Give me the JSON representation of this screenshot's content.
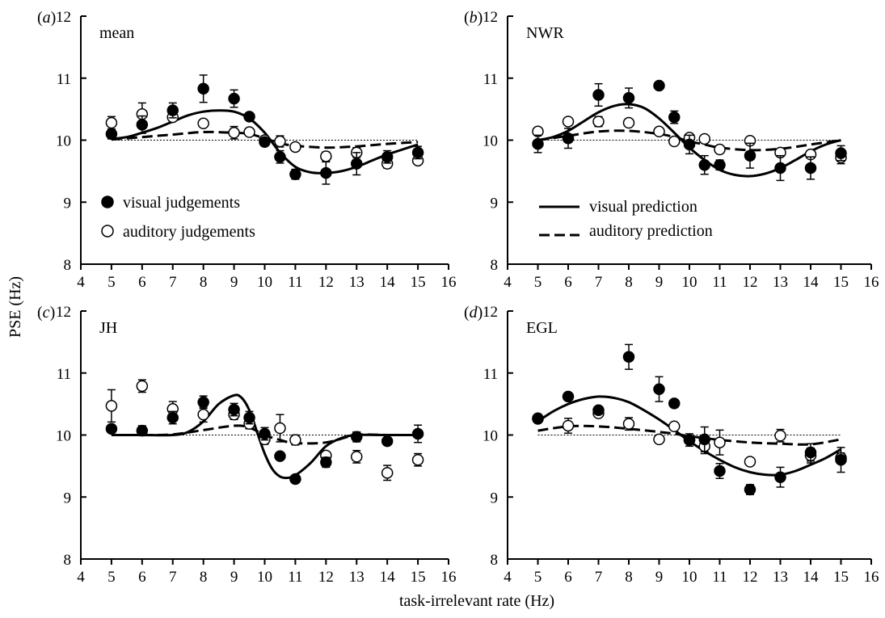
{
  "figure": {
    "ylabel": "PSE (Hz)",
    "xlabel": "task-irrelevant rate (Hz)"
  },
  "legends": {
    "markers": [
      {
        "label": "visual judgements",
        "marker": "filled-circle"
      },
      {
        "label": "auditory judgements",
        "marker": "open-circle"
      }
    ],
    "lines": [
      {
        "label": "visual prediction",
        "style": "solid"
      },
      {
        "label": "auditory prediction",
        "style": "dashed"
      }
    ]
  },
  "colors": {
    "ink": "#000000",
    "background": "#ffffff"
  },
  "chart_data": [
    {
      "type": "scatter",
      "panel": "(a)",
      "title": "mean",
      "xlim": [
        4,
        16
      ],
      "ylim": [
        8,
        12
      ],
      "xticks": [
        4,
        5,
        6,
        7,
        8,
        9,
        10,
        11,
        12,
        13,
        14,
        15,
        16
      ],
      "yticks": [
        8,
        9,
        10,
        11,
        12
      ],
      "series": [
        {
          "name": "visual judgements",
          "marker": "filled",
          "x": [
            5,
            6,
            7,
            8,
            9,
            9.5,
            10,
            10.5,
            11,
            12,
            13,
            14,
            15
          ],
          "y": [
            10.1,
            10.25,
            10.48,
            10.83,
            10.67,
            10.38,
            9.97,
            9.73,
            9.45,
            9.47,
            9.62,
            9.73,
            9.8
          ],
          "err": [
            0.08,
            0.14,
            0.12,
            0.22,
            0.14,
            0.06,
            0.05,
            0.1,
            0.08,
            0.18,
            0.18,
            0.1,
            0.1
          ]
        },
        {
          "name": "auditory judgements",
          "marker": "open",
          "x": [
            5,
            6,
            7,
            8,
            9,
            9.5,
            10,
            10.5,
            11,
            12,
            13,
            14,
            15
          ],
          "y": [
            10.28,
            10.42,
            10.37,
            10.27,
            10.12,
            10.13,
            10.0,
            9.98,
            9.89,
            9.74,
            9.8,
            9.62,
            9.67
          ],
          "err": [
            0.1,
            0.18,
            0.05,
            0.04,
            0.1,
            0.05,
            0.05,
            0.09,
            0.04,
            0.07,
            0.08,
            0.07,
            0.05
          ]
        },
        {
          "name": "visual prediction",
          "line": "solid",
          "x": [
            5,
            5.5,
            6,
            6.5,
            7,
            7.5,
            8,
            8.5,
            9,
            9.5,
            10,
            10.5,
            11,
            11.5,
            12,
            12.5,
            13,
            13.5,
            14,
            14.5,
            15
          ],
          "y": [
            10.02,
            10.05,
            10.12,
            10.2,
            10.3,
            10.4,
            10.46,
            10.48,
            10.46,
            10.35,
            10.12,
            9.8,
            9.57,
            9.48,
            9.47,
            9.5,
            9.57,
            9.67,
            9.77,
            9.85,
            9.93
          ]
        },
        {
          "name": "auditory prediction",
          "line": "dashed",
          "x": [
            5,
            6,
            7,
            8,
            9,
            9.5,
            10,
            10.5,
            11,
            12,
            13,
            14,
            15
          ],
          "y": [
            10.01,
            10.05,
            10.09,
            10.13,
            10.12,
            10.1,
            10.03,
            9.95,
            9.91,
            9.88,
            9.9,
            9.94,
            9.97
          ]
        },
        {
          "name": "",
          "line": "dotted",
          "x": [
            5,
            15
          ],
          "y": [
            10,
            10
          ]
        }
      ]
    },
    {
      "type": "scatter",
      "panel": "(b)",
      "title": "NWR",
      "xlim": [
        4,
        16
      ],
      "ylim": [
        8,
        12
      ],
      "xticks": [
        4,
        5,
        6,
        7,
        8,
        9,
        10,
        11,
        12,
        13,
        14,
        15,
        16
      ],
      "yticks": [
        8,
        9,
        10,
        11,
        12
      ],
      "series": [
        {
          "name": "visual judgements",
          "marker": "filled",
          "x": [
            5,
            6,
            7,
            8,
            9,
            9.5,
            10,
            10.5,
            11,
            12,
            13,
            14,
            15
          ],
          "y": [
            9.94,
            10.03,
            10.73,
            10.68,
            10.88,
            10.37,
            9.93,
            9.6,
            9.6,
            9.75,
            9.55,
            9.55,
            9.79
          ],
          "err": [
            0.14,
            0.16,
            0.18,
            0.16,
            0.06,
            0.1,
            0.15,
            0.15,
            0.08,
            0.2,
            0.2,
            0.18,
            0.12
          ]
        },
        {
          "name": "auditory judgements",
          "marker": "open",
          "x": [
            5,
            6,
            7,
            8,
            9,
            9.5,
            10,
            10.5,
            11,
            12,
            13,
            14,
            15
          ],
          "y": [
            10.14,
            10.3,
            10.3,
            10.28,
            10.14,
            9.98,
            10.04,
            10.02,
            9.85,
            9.99,
            9.8,
            9.77,
            9.72
          ],
          "err": [
            0.04,
            0.04,
            0.08,
            0.04,
            0.04,
            0.04,
            0.04,
            0.04,
            0.04,
            0.04,
            0.06,
            0.04,
            0.1
          ]
        },
        {
          "name": "visual prediction",
          "line": "solid",
          "x": [
            5,
            5.5,
            6,
            6.5,
            7,
            7.5,
            8,
            8.5,
            9,
            9.5,
            10,
            10.5,
            11,
            11.5,
            12,
            12.5,
            13,
            13.5,
            14,
            14.5,
            15
          ],
          "y": [
            10.0,
            10.05,
            10.15,
            10.3,
            10.45,
            10.55,
            10.58,
            10.52,
            10.35,
            10.12,
            9.88,
            9.68,
            9.52,
            9.44,
            9.42,
            9.46,
            9.55,
            9.68,
            9.82,
            9.93,
            10.0
          ]
        },
        {
          "name": "auditory prediction",
          "line": "dashed",
          "x": [
            5,
            6,
            7,
            8,
            9,
            9.5,
            10,
            10.5,
            11,
            12,
            13,
            14,
            15
          ],
          "y": [
            10.0,
            10.07,
            10.14,
            10.15,
            10.1,
            10.05,
            9.98,
            9.93,
            9.88,
            9.84,
            9.86,
            9.93,
            10.0
          ]
        },
        {
          "name": "",
          "line": "dotted",
          "x": [
            5,
            15
          ],
          "y": [
            10,
            10
          ]
        }
      ]
    },
    {
      "type": "scatter",
      "panel": "(c)",
      "title": "JH",
      "xlim": [
        4,
        16
      ],
      "ylim": [
        8,
        12
      ],
      "xticks": [
        4,
        5,
        6,
        7,
        8,
        9,
        10,
        11,
        12,
        13,
        14,
        15,
        16
      ],
      "yticks": [
        8,
        9,
        10,
        11,
        12
      ],
      "series": [
        {
          "name": "visual judgements",
          "marker": "filled",
          "x": [
            5,
            6,
            7,
            8,
            9,
            9.5,
            10,
            10.5,
            11,
            12,
            13,
            14,
            15
          ],
          "y": [
            10.1,
            10.07,
            10.28,
            10.53,
            10.41,
            10.28,
            10.02,
            9.66,
            9.29,
            9.56,
            9.97,
            9.9,
            10.02
          ],
          "err": [
            0.06,
            0.08,
            0.1,
            0.1,
            0.1,
            0.1,
            0.1,
            0.04,
            0.04,
            0.08,
            0.08,
            0.04,
            0.14
          ]
        },
        {
          "name": "auditory judgements",
          "marker": "open",
          "x": [
            5,
            6,
            7,
            8,
            9,
            9.5,
            10,
            10.5,
            11,
            12,
            13,
            14,
            15
          ],
          "y": [
            10.47,
            10.79,
            10.42,
            10.33,
            10.33,
            10.18,
            9.93,
            10.11,
            9.92,
            9.67,
            9.65,
            9.39,
            9.6
          ],
          "err": [
            0.26,
            0.1,
            0.12,
            0.12,
            0.08,
            0.08,
            0.08,
            0.22,
            0.08,
            0.06,
            0.1,
            0.12,
            0.1
          ]
        },
        {
          "name": "visual prediction",
          "line": "solid",
          "x": [
            5,
            6,
            7,
            7.5,
            8,
            8.5,
            9,
            9.25,
            9.5,
            9.75,
            10,
            10.25,
            10.5,
            10.75,
            11,
            11.5,
            12,
            12.5,
            13,
            14,
            15
          ],
          "y": [
            10.0,
            10.0,
            10.0,
            10.05,
            10.22,
            10.5,
            10.64,
            10.6,
            10.4,
            10.05,
            9.7,
            9.45,
            9.33,
            9.31,
            9.35,
            9.55,
            9.82,
            9.95,
            10.0,
            10.0,
            10.0
          ]
        },
        {
          "name": "auditory prediction",
          "line": "dashed",
          "x": [
            5,
            6,
            7,
            8,
            9,
            9.5,
            10,
            10.5,
            11,
            12,
            13,
            14,
            15
          ],
          "y": [
            10.0,
            10.0,
            10.01,
            10.08,
            10.15,
            10.12,
            10.0,
            9.92,
            9.87,
            9.88,
            10.0,
            10.0,
            10.0
          ]
        },
        {
          "name": "",
          "line": "dotted",
          "x": [
            5,
            15
          ],
          "y": [
            10,
            10
          ]
        }
      ]
    },
    {
      "type": "scatter",
      "panel": "(d)",
      "title": "EGL",
      "xlim": [
        4,
        16
      ],
      "ylim": [
        8,
        12
      ],
      "xticks": [
        4,
        5,
        6,
        7,
        8,
        9,
        10,
        11,
        12,
        13,
        14,
        15,
        16
      ],
      "yticks": [
        8,
        9,
        10,
        11,
        12
      ],
      "series": [
        {
          "name": "visual judgements",
          "marker": "filled",
          "x": [
            5,
            6,
            7,
            8,
            9,
            9.5,
            10,
            10.5,
            11,
            12,
            13,
            14,
            15
          ],
          "y": [
            10.27,
            10.62,
            10.4,
            11.26,
            10.74,
            10.51,
            9.92,
            9.93,
            9.42,
            9.12,
            9.32,
            9.72,
            9.6
          ],
          "err": [
            0.04,
            0.06,
            0.06,
            0.2,
            0.2,
            0.04,
            0.1,
            0.2,
            0.12,
            0.08,
            0.16,
            0.14,
            0.2
          ]
        },
        {
          "name": "auditory judgements",
          "marker": "open",
          "x": [
            5,
            6,
            7,
            8,
            9,
            9.5,
            10,
            10.5,
            11,
            12,
            13,
            14,
            15
          ],
          "y": [
            10.26,
            10.15,
            10.35,
            10.18,
            9.93,
            10.14,
            9.92,
            9.82,
            9.88,
            9.57,
            9.99,
            9.67,
            9.63
          ],
          "err": [
            0.04,
            0.12,
            0.06,
            0.1,
            0.04,
            0.04,
            0.06,
            0.12,
            0.2,
            0.04,
            0.1,
            0.12,
            0.08
          ]
        },
        {
          "name": "visual prediction",
          "line": "solid",
          "x": [
            5,
            5.5,
            6,
            6.5,
            7,
            7.5,
            8,
            8.5,
            9,
            9.5,
            10,
            10.5,
            11,
            11.5,
            12,
            12.5,
            13,
            13.5,
            14,
            14.5,
            15
          ],
          "y": [
            10.22,
            10.38,
            10.5,
            10.58,
            10.62,
            10.6,
            10.53,
            10.4,
            10.25,
            10.08,
            9.9,
            9.74,
            9.6,
            9.48,
            9.4,
            9.36,
            9.36,
            9.42,
            9.52,
            9.63,
            9.77
          ]
        },
        {
          "name": "auditory prediction",
          "line": "dashed",
          "x": [
            5,
            6,
            7,
            8,
            9,
            9.5,
            10,
            10.5,
            11,
            12,
            13,
            14,
            15
          ],
          "y": [
            10.07,
            10.14,
            10.14,
            10.1,
            10.05,
            10.02,
            9.98,
            9.95,
            9.92,
            9.88,
            9.86,
            9.85,
            9.93
          ]
        },
        {
          "name": "",
          "line": "dotted",
          "x": [
            5,
            15
          ],
          "y": [
            10,
            10
          ]
        }
      ]
    }
  ]
}
